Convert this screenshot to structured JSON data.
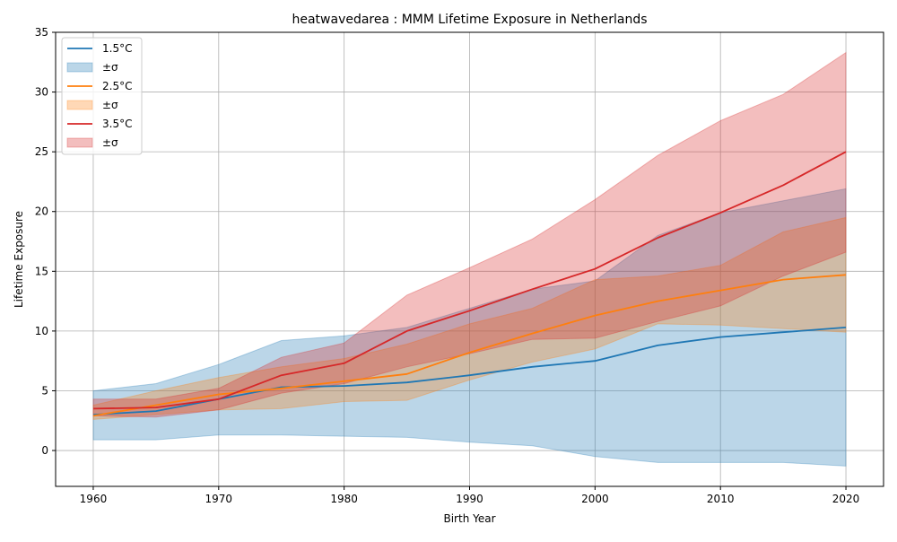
{
  "chart_data": {
    "type": "area",
    "title": "heatwavedarea : MMM Lifetime Exposure in Netherlands",
    "xlabel": "Birth Year",
    "ylabel": "Lifetime Exposure",
    "xlim": [
      1957,
      2023
    ],
    "ylim": [
      -3,
      35
    ],
    "xticks": [
      1960,
      1970,
      1980,
      1990,
      2000,
      2010,
      2020
    ],
    "yticks": [
      0,
      5,
      10,
      15,
      20,
      25,
      30,
      35
    ],
    "grid": true,
    "legend_position": "top-left",
    "x": [
      1960,
      1965,
      1970,
      1975,
      1980,
      1985,
      1990,
      1995,
      2000,
      2005,
      2010,
      2015,
      2020
    ],
    "series": [
      {
        "name": "1.5°C",
        "band_label": "±σ",
        "color": "#1f77b4",
        "mean": [
          3.0,
          3.3,
          4.3,
          5.3,
          5.4,
          5.7,
          6.3,
          7.0,
          7.5,
          8.8,
          9.5,
          9.9,
          10.3
        ],
        "upper": [
          5.0,
          5.6,
          7.2,
          9.2,
          9.6,
          10.3,
          11.9,
          13.5,
          14.2,
          18.0,
          19.9,
          20.9,
          21.9
        ],
        "lower": [
          0.9,
          0.9,
          1.3,
          1.3,
          1.2,
          1.1,
          0.7,
          0.4,
          -0.5,
          -1.0,
          -1.0,
          -1.0,
          -1.3
        ]
      },
      {
        "name": "2.5°C",
        "band_label": "±σ",
        "color": "#ff7f0e",
        "mean": [
          2.9,
          3.8,
          4.7,
          5.2,
          5.8,
          6.4,
          8.2,
          9.8,
          11.3,
          12.5,
          13.4,
          14.3,
          14.7
        ],
        "upper": [
          3.8,
          5.0,
          6.1,
          7.0,
          7.7,
          8.9,
          10.6,
          11.9,
          14.3,
          14.6,
          15.5,
          18.3,
          19.5
        ],
        "lower": [
          2.6,
          3.0,
          3.4,
          3.5,
          4.1,
          4.2,
          5.9,
          7.4,
          8.5,
          10.6,
          10.5,
          10.2,
          9.9
        ]
      },
      {
        "name": "3.5°C",
        "band_label": "±σ",
        "color": "#d62728",
        "mean": [
          3.5,
          3.6,
          4.3,
          6.3,
          7.3,
          10.0,
          11.7,
          13.5,
          15.2,
          17.8,
          19.9,
          22.2,
          25.0
        ],
        "upper": [
          4.3,
          4.3,
          5.2,
          7.8,
          9.0,
          13.0,
          15.3,
          17.7,
          21.0,
          24.7,
          27.6,
          29.8,
          33.3
        ],
        "lower": [
          2.9,
          2.8,
          3.4,
          4.8,
          5.6,
          7.0,
          8.1,
          9.3,
          9.4,
          10.8,
          12.1,
          14.6,
          16.6
        ]
      }
    ]
  }
}
